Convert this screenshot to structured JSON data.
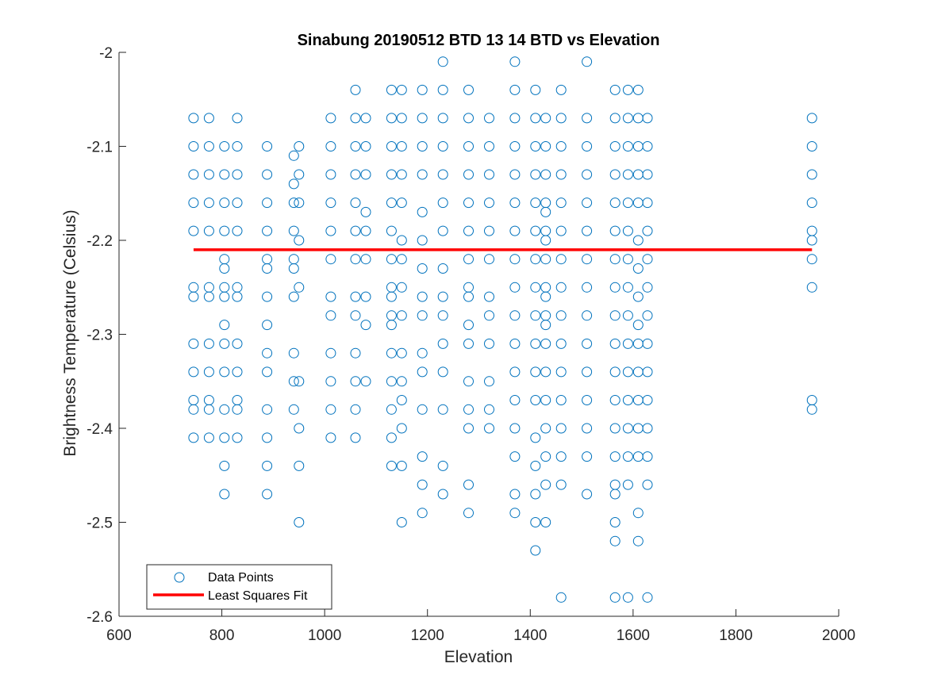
{
  "chart_data": {
    "type": "scatter",
    "title": "Sinabung 20190512 BTD 13 14 BTD vs Elevation",
    "xlabel": "Elevation",
    "ylabel": "Brightness Temperature (Celsius)",
    "xlim": [
      600,
      2000
    ],
    "ylim": [
      -2.6,
      -2.0
    ],
    "xticks": [
      600,
      800,
      1000,
      1200,
      1400,
      1600,
      1800,
      2000
    ],
    "yticks": [
      -2.6,
      -2.5,
      -2.4,
      -2.3,
      -2.2,
      -2.1,
      -2.0
    ],
    "xtick_labels": [
      "600",
      "800",
      "1000",
      "1200",
      "1400",
      "1600",
      "1800",
      "2000"
    ],
    "ytick_labels": [
      "-2.6",
      "-2.5",
      "-2.4",
      "-2.3",
      "-2.2",
      "-2.1",
      "-2"
    ],
    "grid": false,
    "legend_position": "bottom-left",
    "series": [
      {
        "name": "Data Points",
        "marker": "open-circle",
        "color": "#0072BD",
        "columns": [
          {
            "x": 745,
            "y": [
              -2.07,
              -2.1,
              -2.13,
              -2.16,
              -2.19,
              -2.25,
              -2.26,
              -2.31,
              -2.34,
              -2.37,
              -2.38,
              -2.41
            ]
          },
          {
            "x": 775,
            "y": [
              -2.07,
              -2.1,
              -2.13,
              -2.16,
              -2.19,
              -2.25,
              -2.26,
              -2.31,
              -2.34,
              -2.37,
              -2.38,
              -2.41
            ]
          },
          {
            "x": 805,
            "y": [
              -2.1,
              -2.13,
              -2.16,
              -2.19,
              -2.22,
              -2.23,
              -2.25,
              -2.26,
              -2.29,
              -2.31,
              -2.34,
              -2.38,
              -2.41,
              -2.44,
              -2.47
            ]
          },
          {
            "x": 830,
            "y": [
              -2.07,
              -2.1,
              -2.13,
              -2.16,
              -2.19,
              -2.25,
              -2.26,
              -2.31,
              -2.34,
              -2.37,
              -2.38,
              -2.41
            ]
          },
          {
            "x": 888,
            "y": [
              -2.1,
              -2.13,
              -2.16,
              -2.19,
              -2.22,
              -2.23,
              -2.26,
              -2.29,
              -2.32,
              -2.34,
              -2.38,
              -2.41,
              -2.44,
              -2.47
            ]
          },
          {
            "x": 940,
            "y": [
              -2.11,
              -2.14,
              -2.16,
              -2.19,
              -2.22,
              -2.23,
              -2.26,
              -2.32,
              -2.35,
              -2.38
            ]
          },
          {
            "x": 950,
            "y": [
              -2.1,
              -2.13,
              -2.16,
              -2.2,
              -2.25,
              -2.35,
              -2.4,
              -2.44,
              -2.5
            ]
          },
          {
            "x": 1012,
            "y": [
              -2.07,
              -2.1,
              -2.13,
              -2.16,
              -2.19,
              -2.22,
              -2.26,
              -2.28,
              -2.32,
              -2.35,
              -2.38,
              -2.41
            ]
          },
          {
            "x": 1060,
            "y": [
              -2.04,
              -2.07,
              -2.1,
              -2.13,
              -2.16,
              -2.19,
              -2.22,
              -2.26,
              -2.28,
              -2.32,
              -2.35,
              -2.38,
              -2.41
            ]
          },
          {
            "x": 1080,
            "y": [
              -2.07,
              -2.1,
              -2.13,
              -2.17,
              -2.19,
              -2.22,
              -2.26,
              -2.29,
              -2.35
            ]
          },
          {
            "x": 1130,
            "y": [
              -2.04,
              -2.07,
              -2.1,
              -2.13,
              -2.16,
              -2.19,
              -2.22,
              -2.25,
              -2.26,
              -2.28,
              -2.29,
              -2.32,
              -2.35,
              -2.38,
              -2.41,
              -2.44
            ]
          },
          {
            "x": 1150,
            "y": [
              -2.04,
              -2.07,
              -2.1,
              -2.13,
              -2.16,
              -2.2,
              -2.22,
              -2.25,
              -2.28,
              -2.32,
              -2.35,
              -2.37,
              -2.4,
              -2.44,
              -2.5
            ]
          },
          {
            "x": 1190,
            "y": [
              -2.04,
              -2.07,
              -2.1,
              -2.13,
              -2.17,
              -2.2,
              -2.23,
              -2.26,
              -2.28,
              -2.32,
              -2.34,
              -2.38,
              -2.43,
              -2.46,
              -2.49
            ]
          },
          {
            "x": 1230,
            "y": [
              -2.01,
              -2.04,
              -2.07,
              -2.1,
              -2.13,
              -2.16,
              -2.19,
              -2.23,
              -2.26,
              -2.28,
              -2.31,
              -2.34,
              -2.38,
              -2.44,
              -2.47
            ]
          },
          {
            "x": 1280,
            "y": [
              -2.04,
              -2.07,
              -2.1,
              -2.13,
              -2.16,
              -2.19,
              -2.22,
              -2.25,
              -2.26,
              -2.29,
              -2.31,
              -2.35,
              -2.38,
              -2.4,
              -2.46,
              -2.49
            ]
          },
          {
            "x": 1320,
            "y": [
              -2.07,
              -2.1,
              -2.13,
              -2.16,
              -2.19,
              -2.22,
              -2.26,
              -2.28,
              -2.31,
              -2.35,
              -2.38,
              -2.4
            ]
          },
          {
            "x": 1370,
            "y": [
              -2.01,
              -2.04,
              -2.07,
              -2.1,
              -2.13,
              -2.16,
              -2.19,
              -2.22,
              -2.25,
              -2.28,
              -2.31,
              -2.34,
              -2.37,
              -2.4,
              -2.43,
              -2.47,
              -2.49
            ]
          },
          {
            "x": 1410,
            "y": [
              -2.04,
              -2.07,
              -2.1,
              -2.13,
              -2.16,
              -2.19,
              -2.22,
              -2.25,
              -2.28,
              -2.31,
              -2.34,
              -2.37,
              -2.41,
              -2.44,
              -2.47,
              -2.5,
              -2.53
            ]
          },
          {
            "x": 1430,
            "y": [
              -2.07,
              -2.1,
              -2.13,
              -2.16,
              -2.17,
              -2.19,
              -2.2,
              -2.22,
              -2.25,
              -2.26,
              -2.28,
              -2.29,
              -2.31,
              -2.34,
              -2.37,
              -2.4,
              -2.43,
              -2.46,
              -2.5
            ]
          },
          {
            "x": 1460,
            "y": [
              -2.04,
              -2.07,
              -2.1,
              -2.13,
              -2.16,
              -2.19,
              -2.22,
              -2.25,
              -2.28,
              -2.31,
              -2.34,
              -2.37,
              -2.4,
              -2.43,
              -2.46,
              -2.58
            ]
          },
          {
            "x": 1510,
            "y": [
              -2.01,
              -2.07,
              -2.1,
              -2.13,
              -2.16,
              -2.19,
              -2.22,
              -2.25,
              -2.28,
              -2.31,
              -2.34,
              -2.37,
              -2.4,
              -2.43,
              -2.47
            ]
          },
          {
            "x": 1565,
            "y": [
              -2.04,
              -2.07,
              -2.1,
              -2.13,
              -2.16,
              -2.19,
              -2.22,
              -2.25,
              -2.28,
              -2.31,
              -2.34,
              -2.37,
              -2.4,
              -2.43,
              -2.46,
              -2.47,
              -2.5,
              -2.52,
              -2.58
            ]
          },
          {
            "x": 1590,
            "y": [
              -2.04,
              -2.07,
              -2.1,
              -2.13,
              -2.16,
              -2.19,
              -2.22,
              -2.25,
              -2.28,
              -2.31,
              -2.34,
              -2.37,
              -2.4,
              -2.43,
              -2.46,
              -2.58
            ]
          },
          {
            "x": 1610,
            "y": [
              -2.04,
              -2.07,
              -2.1,
              -2.13,
              -2.16,
              -2.2,
              -2.23,
              -2.26,
              -2.29,
              -2.31,
              -2.34,
              -2.37,
              -2.4,
              -2.43,
              -2.49,
              -2.52
            ]
          },
          {
            "x": 1628,
            "y": [
              -2.07,
              -2.1,
              -2.13,
              -2.16,
              -2.19,
              -2.22,
              -2.25,
              -2.28,
              -2.31,
              -2.34,
              -2.37,
              -2.4,
              -2.43,
              -2.46,
              -2.58
            ]
          },
          {
            "x": 1948,
            "y": [
              -2.07,
              -2.1,
              -2.13,
              -2.16,
              -2.19,
              -2.2,
              -2.22,
              -2.25,
              -2.37,
              -2.38
            ]
          }
        ]
      },
      {
        "name": "Least Squares Fit",
        "type": "line",
        "color": "#FF0000",
        "x": [
          745,
          1948
        ],
        "y": [
          -2.21,
          -2.21
        ]
      }
    ]
  }
}
